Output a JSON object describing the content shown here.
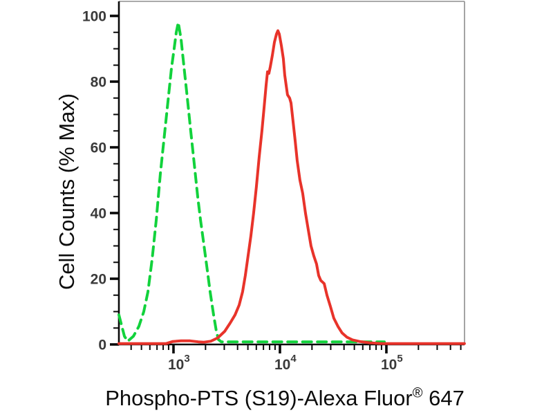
{
  "figure": {
    "background": "#ffffff",
    "colors": {
      "green_curve": "#12d23c",
      "red_curve": "#e8332a",
      "axis_line": "#0a0a0a",
      "frame_border": "#8e8e8e",
      "tick_label": "#3a3a3a"
    },
    "y_axis": {
      "label": "Cell Counts (% Max)",
      "major_ticks": [
        0,
        20,
        40,
        60,
        80,
        100
      ],
      "minor_tick_step": 5,
      "range": [
        0,
        100
      ]
    },
    "x_axis": {
      "label": {
        "main": "Phospho-PTS (S19)-Alexa Fluor",
        "sup": "®",
        "suffix": " 647"
      },
      "scale": "log",
      "major_ticks": [
        {
          "value": 1000,
          "label_base": "10",
          "label_exp": "3"
        },
        {
          "value": 10000,
          "label_base": "10",
          "label_exp": "4"
        },
        {
          "value": 100000,
          "label_base": "10",
          "label_exp": "5"
        }
      ],
      "minor_tick_multiples": [
        2,
        3,
        4,
        5,
        6,
        7,
        8,
        9
      ],
      "range": [
        307,
        542000
      ]
    }
  },
  "chart_data": {
    "type": "line",
    "subtype": "flow-cytometry-histogram-overlay",
    "title": "",
    "xlabel": "Phospho-PTS (S19)-Alexa Fluor® 647",
    "ylabel": "Cell Counts (% Max)",
    "x_scale": "log",
    "xlim": [
      307,
      542000
    ],
    "ylim": [
      0,
      100
    ],
    "grid": false,
    "legend": "none",
    "series": [
      {
        "name": "green-dashed",
        "style": "dashed",
        "color": "#12d23c",
        "peak": {
          "x": 1109,
          "y": 98
        },
        "points": [
          [
            307,
            9
          ],
          [
            346,
            2.5
          ],
          [
            372,
            1
          ],
          [
            420,
            2.5
          ],
          [
            473,
            5.5
          ],
          [
            526,
            10
          ],
          [
            575,
            16
          ],
          [
            630,
            26
          ],
          [
            689,
            38
          ],
          [
            753,
            52
          ],
          [
            824,
            64
          ],
          [
            887,
            74
          ],
          [
            957,
            84
          ],
          [
            1014,
            90
          ],
          [
            1062,
            95
          ],
          [
            1109,
            98
          ],
          [
            1178,
            93
          ],
          [
            1250,
            85
          ],
          [
            1349,
            75
          ],
          [
            1452,
            65
          ],
          [
            1567,
            55
          ],
          [
            1687,
            45
          ],
          [
            1791,
            38
          ],
          [
            1901,
            32
          ],
          [
            2051,
            24
          ],
          [
            2208,
            16
          ],
          [
            2382,
            9
          ],
          [
            2529,
            4
          ],
          [
            2642,
            1.5
          ],
          [
            2805,
            0.8
          ],
          [
            95700,
            0.8
          ]
        ]
      },
      {
        "name": "red-solid",
        "style": "solid",
        "color": "#e8332a",
        "peak": {
          "x": 9572,
          "y": 95.5
        },
        "points": [
          [
            307,
            0.25
          ],
          [
            849,
            0.25
          ],
          [
            986,
            0.9
          ],
          [
            1178,
            1.1
          ],
          [
            1432,
            1.1
          ],
          [
            1714,
            0.8
          ],
          [
            1932,
            0.7
          ],
          [
            2244,
            1.0
          ],
          [
            2606,
            2
          ],
          [
            3027,
            4
          ],
          [
            3404,
            6.5
          ],
          [
            3784,
            9
          ],
          [
            4140,
            12
          ],
          [
            4457,
            16
          ],
          [
            4732,
            21
          ],
          [
            5023,
            27
          ],
          [
            5333,
            33
          ],
          [
            5662,
            40
          ],
          [
            6011,
            48
          ],
          [
            6383,
            57
          ],
          [
            6776,
            65
          ],
          [
            7096,
            72
          ],
          [
            7413,
            79
          ],
          [
            7638,
            83
          ],
          [
            7870,
            82.5
          ],
          [
            8110,
            84.5
          ],
          [
            8492,
            88
          ],
          [
            8872,
            92
          ],
          [
            9290,
            94.5
          ],
          [
            9572,
            95.5
          ],
          [
            9862,
            94.5
          ],
          [
            10304,
            91
          ],
          [
            10765,
            87
          ],
          [
            11092,
            82
          ],
          [
            11429,
            79
          ],
          [
            11776,
            76
          ],
          [
            12329,
            75
          ],
          [
            12706,
            73.5
          ],
          [
            13274,
            68
          ],
          [
            13894,
            62
          ],
          [
            14521,
            56
          ],
          [
            15417,
            50
          ],
          [
            16368,
            46
          ],
          [
            17378,
            40
          ],
          [
            18450,
            35
          ],
          [
            19588,
            30
          ],
          [
            20797,
            27
          ],
          [
            22080,
            24.5
          ],
          [
            23121,
            21
          ],
          [
            24155,
            19.5
          ],
          [
            26062,
            18.5
          ],
          [
            27669,
            15
          ],
          [
            29854,
            11.5
          ],
          [
            32061,
            8
          ],
          [
            35075,
            5.5
          ],
          [
            38371,
            3.5
          ],
          [
            42658,
            2.2
          ],
          [
            48084,
            1.4
          ],
          [
            55847,
            0.9
          ],
          [
            69823,
            0.5
          ],
          [
            87498,
            0.3
          ],
          [
            101400,
            0.25
          ],
          [
            541000,
            0.25
          ]
        ]
      }
    ]
  }
}
